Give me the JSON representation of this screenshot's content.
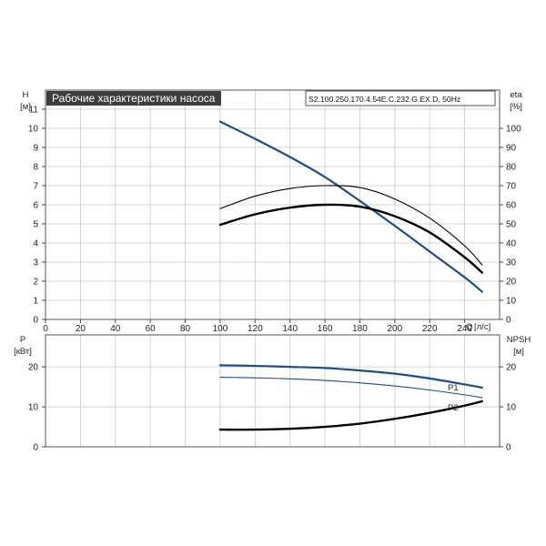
{
  "chart_data": [
    {
      "type": "line",
      "title": "Рабочие характеристики насоса",
      "model_label": "S2.100.250.170.4.54E.C.232.G.EX.D, 50Hz",
      "left_axis": {
        "label": "H",
        "unit": "[м]",
        "ylim": [
          0,
          12
        ],
        "ticks": [
          0,
          1,
          2,
          3,
          4,
          5,
          6,
          7,
          8,
          9,
          10,
          11
        ]
      },
      "right_axis": {
        "label": "eta",
        "unit": "[%]",
        "ylim": [
          0,
          120
        ],
        "ticks": [
          0,
          10,
          20,
          30,
          40,
          50,
          60,
          70,
          80,
          90,
          100
        ]
      },
      "x_axis": {
        "label": "Q",
        "unit": "[л/с]",
        "xlim": [
          0,
          260
        ],
        "ticks": [
          0,
          20,
          40,
          60,
          80,
          100,
          120,
          140,
          160,
          180,
          200,
          220,
          240
        ]
      },
      "grid": true,
      "series": [
        {
          "color": "#1b4f8a",
          "axis": "left",
          "x": [
            100,
            120,
            140,
            160,
            180,
            200,
            220,
            240,
            250
          ],
          "y": [
            10.35,
            9.45,
            8.5,
            7.45,
            6.2,
            4.9,
            3.55,
            2.2,
            1.45
          ]
        },
        {
          "color": "#000000",
          "axis": "left",
          "x": [
            100,
            120,
            140,
            160,
            180,
            200,
            220,
            240,
            250
          ],
          "y": [
            5.8,
            6.45,
            6.85,
            7.0,
            6.9,
            6.3,
            5.3,
            3.85,
            2.85
          ]
        },
        {
          "color": "#000000",
          "axis": "left",
          "x": [
            100,
            120,
            140,
            160,
            180,
            200,
            220,
            240,
            250
          ],
          "y": [
            4.95,
            5.5,
            5.85,
            6.0,
            5.9,
            5.4,
            4.55,
            3.25,
            2.45
          ]
        }
      ]
    },
    {
      "type": "line",
      "left_axis": {
        "label": "P",
        "unit": "[кВт]",
        "ylim": [
          0,
          28
        ],
        "ticks": [
          0,
          10,
          20
        ]
      },
      "right_axis": {
        "label": "NPSH",
        "unit": "[м]",
        "ylim": [
          0,
          28
        ],
        "ticks": [
          0,
          10,
          20
        ]
      },
      "x_axis": {
        "xlim": [
          0,
          260
        ],
        "ticks": [
          0,
          20,
          40,
          60,
          80,
          100,
          120,
          140,
          160,
          180,
          200,
          220,
          240
        ]
      },
      "grid": true,
      "series": [
        {
          "name": "P1",
          "color": "#1b4f8a",
          "axis": "left",
          "x": [
            100,
            120,
            140,
            160,
            180,
            200,
            220,
            240,
            250
          ],
          "y": [
            20.4,
            20.25,
            20.0,
            19.7,
            19.1,
            18.3,
            17.1,
            15.6,
            14.8
          ]
        },
        {
          "name": "P2",
          "color": "#1b4f8a",
          "axis": "left",
          "x": [
            100,
            120,
            140,
            160,
            180,
            200,
            220,
            240,
            250
          ],
          "y": [
            17.4,
            17.25,
            17.0,
            16.6,
            16.0,
            15.2,
            14.2,
            13.0,
            12.3
          ]
        },
        {
          "color": "#000000",
          "axis": "right",
          "x": [
            100,
            120,
            140,
            160,
            180,
            200,
            220,
            240,
            250
          ],
          "y": [
            4.3,
            4.3,
            4.5,
            5.0,
            5.8,
            7.0,
            8.5,
            10.3,
            11.4
          ]
        }
      ]
    }
  ]
}
